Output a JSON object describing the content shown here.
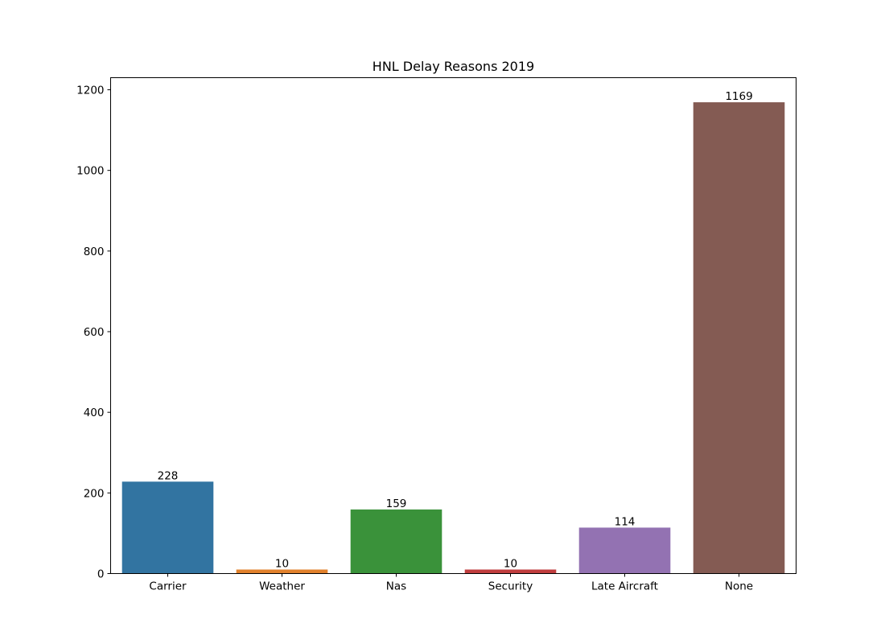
{
  "chart_data": {
    "type": "bar",
    "title": "HNL Delay Reasons 2019",
    "xlabel": "",
    "ylabel": "",
    "categories": [
      "Carrier",
      "Weather",
      "Nas",
      "Security",
      "Late Aircraft",
      "None"
    ],
    "values": [
      228,
      10,
      159,
      10,
      114,
      1169
    ],
    "colors": [
      "#3274a1",
      "#e1812c",
      "#3a923a",
      "#c03d3e",
      "#9372b2",
      "#845b53"
    ],
    "ylim": [
      0,
      1230
    ],
    "yticks": [
      0,
      200,
      400,
      600,
      800,
      1000,
      1200
    ],
    "grid": false,
    "legend": "none",
    "data_labels": true
  }
}
